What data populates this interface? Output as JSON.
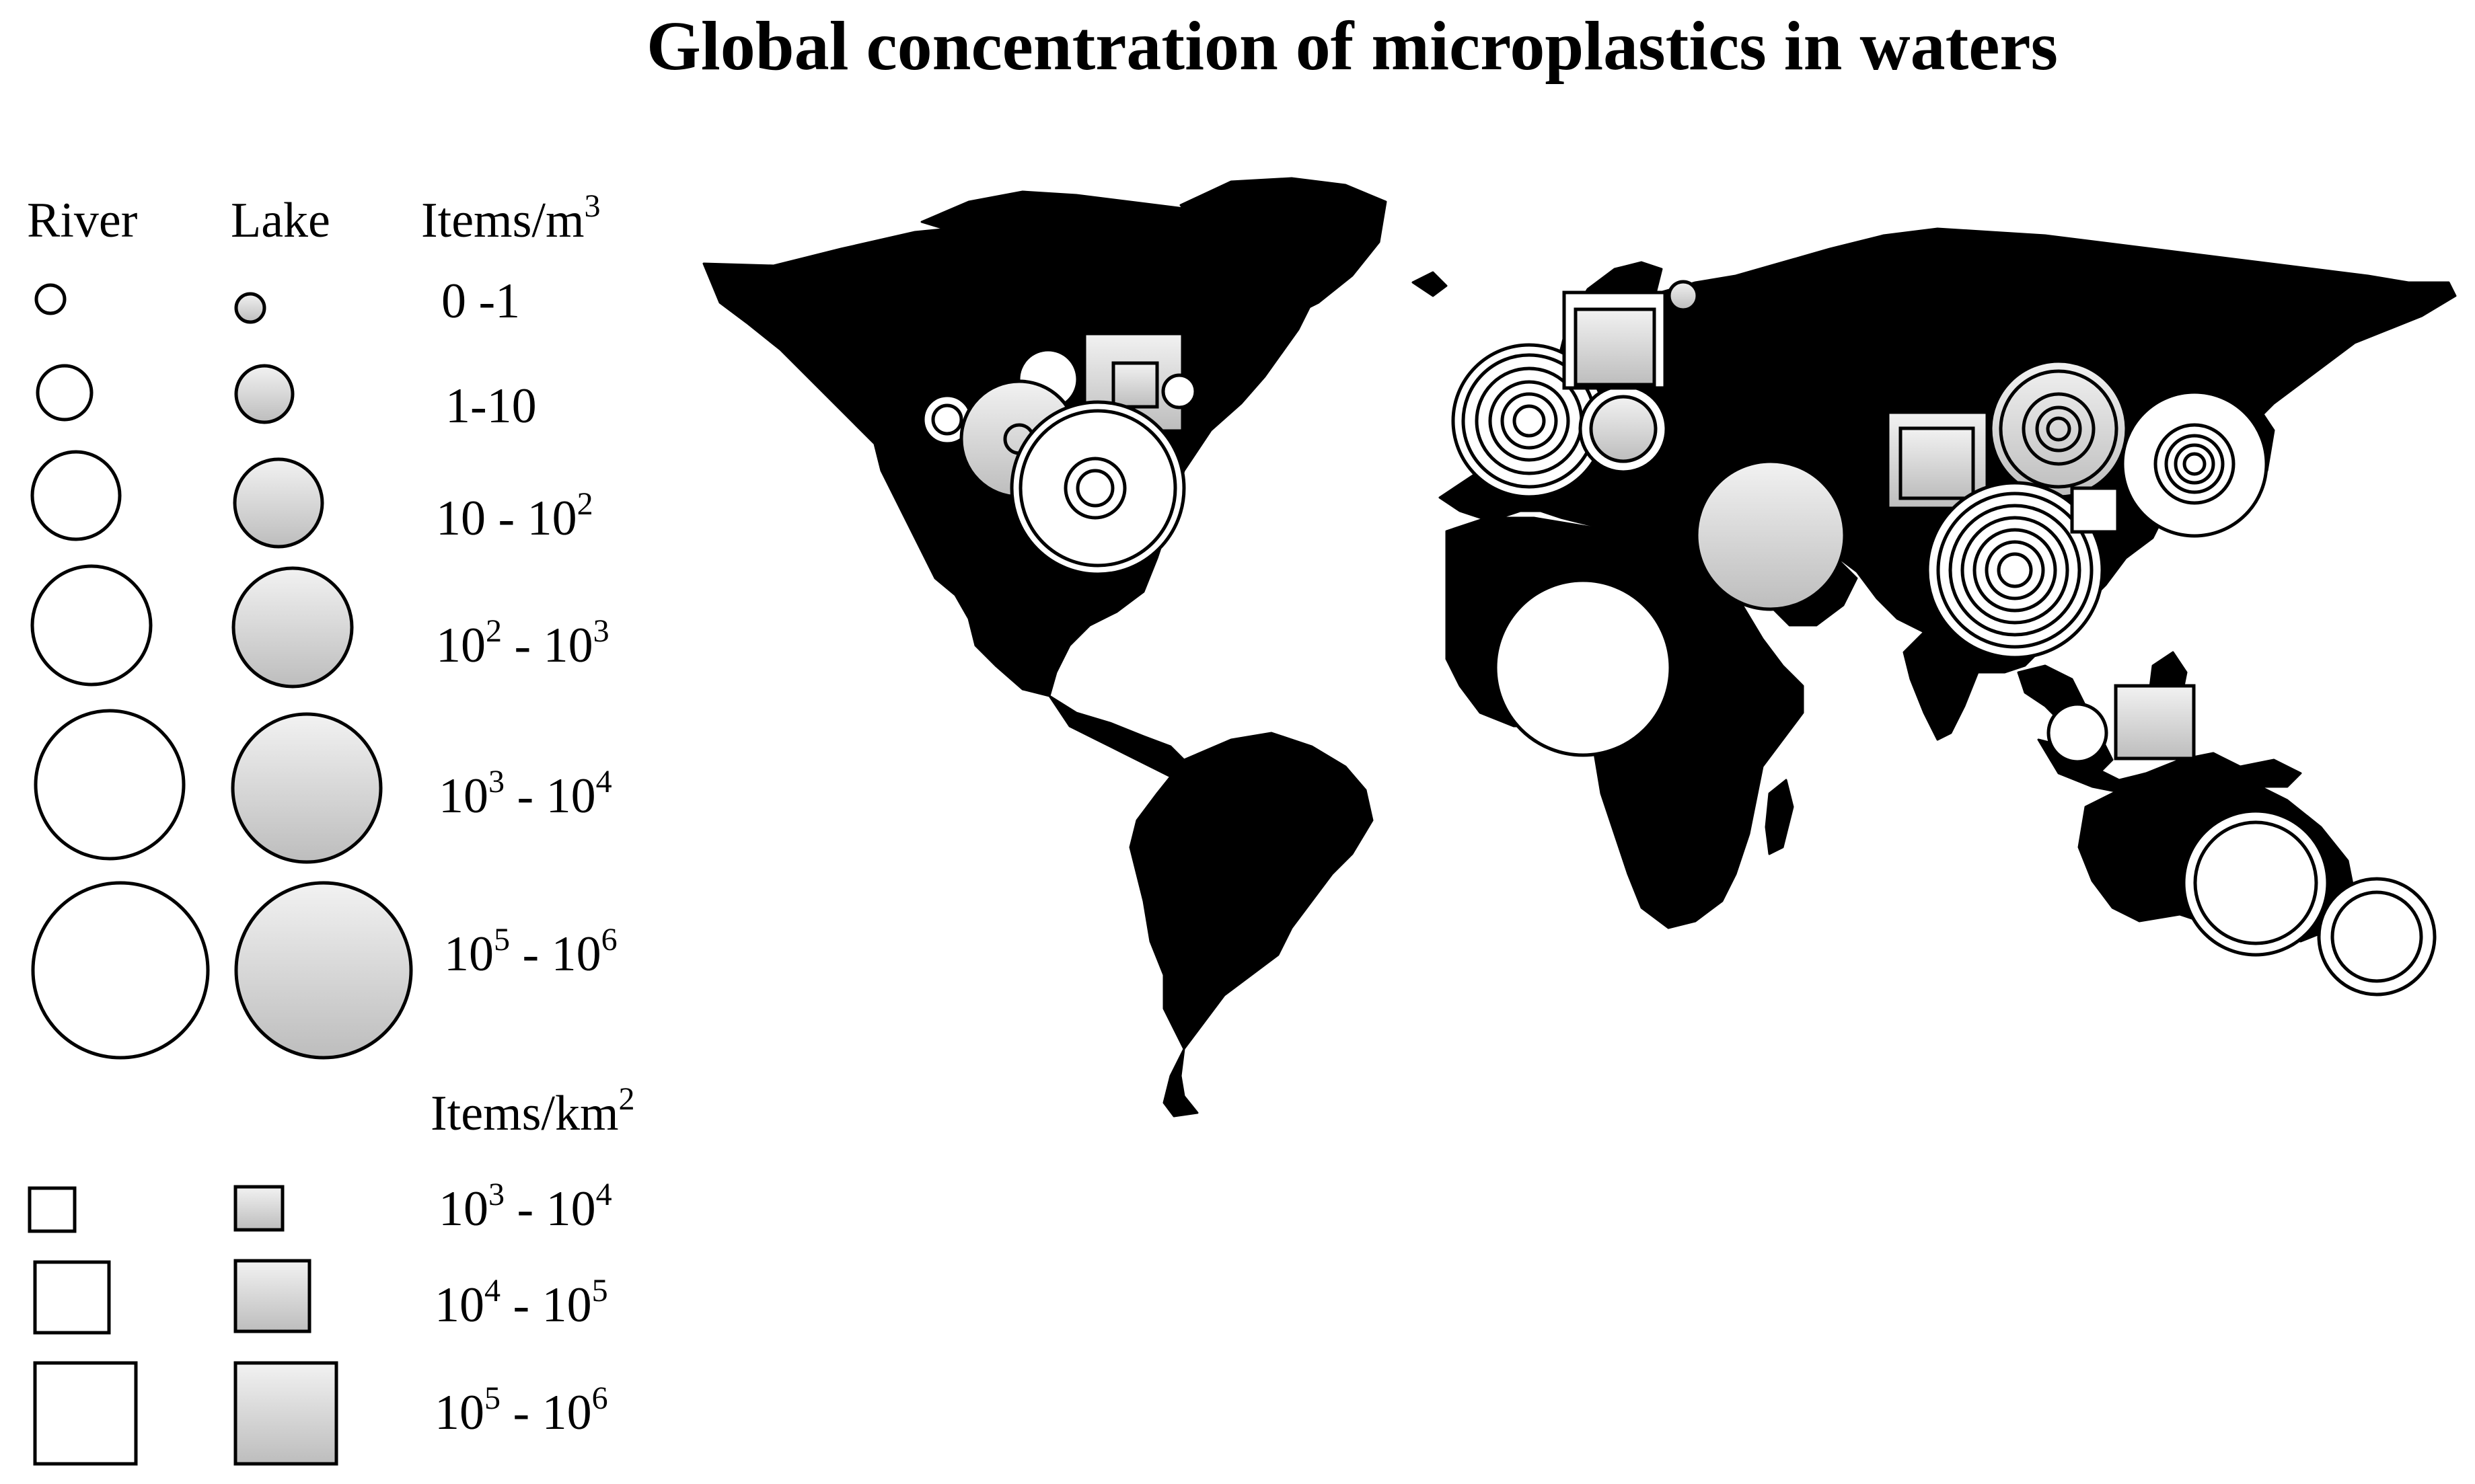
{
  "title": "Global concentration of microplastics in waters",
  "legend": {
    "river_label": "River",
    "lake_label": "Lake",
    "volume_unit": {
      "base": "Items/m",
      "exp": "3"
    },
    "area_unit": {
      "base": "Items/km",
      "exp": "2"
    },
    "volume_classes": [
      {
        "parts": [
          [
            "0 -1",
            ""
          ]
        ]
      },
      {
        "parts": [
          [
            "1-10",
            ""
          ]
        ]
      },
      {
        "parts": [
          [
            "10 - 10",
            "2"
          ]
        ]
      },
      {
        "parts": [
          [
            "10",
            "2"
          ],
          [
            " - 10",
            "3"
          ]
        ]
      },
      {
        "parts": [
          [
            "10",
            "3"
          ],
          [
            " - 10",
            "4"
          ]
        ]
      },
      {
        "parts": [
          [
            "10",
            "5"
          ],
          [
            " - 10",
            "6"
          ]
        ]
      }
    ],
    "area_classes": [
      {
        "parts": [
          [
            "10",
            "3"
          ],
          [
            " - 10",
            "4"
          ]
        ]
      },
      {
        "parts": [
          [
            "10",
            "4"
          ],
          [
            " - 10",
            "5"
          ]
        ]
      },
      {
        "parts": [
          [
            "10",
            "5"
          ],
          [
            " - 10",
            "6"
          ]
        ]
      }
    ]
  },
  "colors": {
    "land": "#000000",
    "river_marker": "#ffffff",
    "lake_marker_light": "#f2f2f2",
    "lake_marker_dark": "#bdbdbd",
    "outline": "#000000"
  },
  "map": {
    "region": "world",
    "sites": [
      {
        "region": "western-north-america",
        "type": "river",
        "classes": [
          "1-10",
          "0-1"
        ]
      },
      {
        "region": "north-america-west-central",
        "type": "river",
        "classes": [
          "10-10^2"
        ]
      },
      {
        "region": "north-america-central",
        "type": "lake",
        "classes": [
          "10^2-10^3",
          "0-1"
        ]
      },
      {
        "region": "great-lakes",
        "type": "lake",
        "shape": "square",
        "classes": [
          "10^5-10^6 km2",
          "10^4-10^5 km2"
        ]
      },
      {
        "region": "eastern-north-america",
        "type": "river",
        "classes": [
          "10-10^2"
        ]
      },
      {
        "region": "eastern-united-states",
        "type": "river",
        "classes": [
          "10^3-10^4",
          "10^3-10^4",
          "1-10",
          "0-1"
        ]
      },
      {
        "region": "western-europe",
        "type": "river",
        "classes": [
          "10^3-10^4",
          "10^3-10^4",
          "10^2-10^3",
          "10-10^2",
          "1-10",
          "0-1"
        ]
      },
      {
        "region": "central-europe",
        "type": "lake",
        "classes": [
          "10^2-10^3",
          "10-10^2"
        ]
      },
      {
        "region": "northern-europe",
        "type": "lake",
        "shape": "square",
        "classes": [
          "10^5-10^6 km2",
          "10^4-10^5 km2"
        ]
      },
      {
        "region": "north-russia",
        "type": "lake",
        "classes": [
          "1-10"
        ]
      },
      {
        "region": "middle-east",
        "type": "lake",
        "classes": [
          "10^3-10^4"
        ]
      },
      {
        "region": "west-central-africa",
        "type": "river",
        "classes": [
          "10^5-10^6"
        ]
      },
      {
        "region": "central-asia",
        "type": "lake",
        "shape": "square",
        "classes": [
          "10^5-10^6 km2",
          "10^4-10^5 km2"
        ]
      },
      {
        "region": "northern-china",
        "type": "lake",
        "classes": [
          "10^3-10^4",
          "10^2-10^3",
          "10-10^2",
          "1-10",
          "0-1"
        ]
      },
      {
        "region": "northeast-asia",
        "type": "river",
        "classes": [
          "10^3-10^4",
          "10^2-10^3",
          "10-10^2",
          "1-10",
          "0-1"
        ]
      },
      {
        "region": "southern-china",
        "type": "river",
        "classes": [
          "10^3-10^4",
          "10^3-10^4",
          "10^2-10^3",
          "10^2-10^3",
          "10-10^2",
          "1-10",
          "0-1"
        ]
      },
      {
        "region": "east-china",
        "type": "river",
        "shape": "square",
        "classes": [
          "10^4-10^5 km2"
        ]
      },
      {
        "region": "southeast-asia",
        "type": "river",
        "classes": [
          "1-10"
        ]
      },
      {
        "region": "indonesia",
        "type": "lake",
        "shape": "square",
        "classes": [
          "10^4-10^5 km2"
        ]
      },
      {
        "region": "south-east-australia",
        "type": "river",
        "classes": [
          "10^3-10^4",
          "10^2-10^3"
        ]
      },
      {
        "region": "new-zealand",
        "type": "river",
        "classes": [
          "10^2-10^3",
          "10-10^2"
        ]
      }
    ]
  }
}
